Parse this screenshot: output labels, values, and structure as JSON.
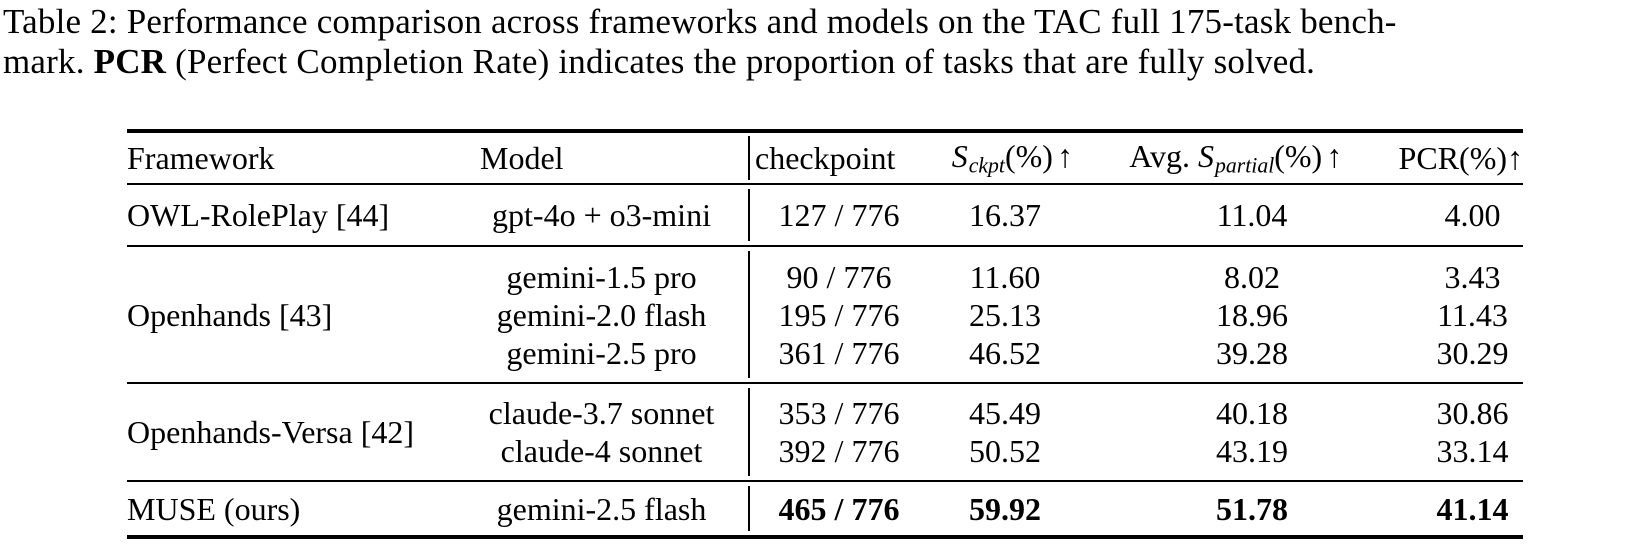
{
  "caption": {
    "line1": "Table 2: Performance comparison across frameworks and models on the TAC full 175-task bench-",
    "line2_pre": "mark.",
    "line2_bold": "PCR",
    "line2_post": "(Perfect Completion Rate) indicates the proportion of tasks that are fully solved."
  },
  "colors": {
    "text": "#000000",
    "background": "#ffffff",
    "rule": "#000000"
  },
  "table": {
    "header": {
      "framework": "Framework",
      "model": "Model",
      "checkpoint_label": "checkpoint",
      "sckpt": {
        "base": "S",
        "sub": "ckpt",
        "pct": "(%)",
        "arrow": "↑"
      },
      "avg": "Avg.",
      "spartial": {
        "base": "S",
        "sub": "partial",
        "pct": "(%)",
        "arrow": "↑"
      },
      "pcr": {
        "label": "PCR(%)",
        "arrow": "↑"
      }
    },
    "groups": [
      {
        "framework": "OWL-RolePlay [44]",
        "rows": [
          {
            "model": "gpt-4o + o3-mini",
            "checkpoint": "127 / 776",
            "s_ckpt": "16.37",
            "s_partial": "11.04",
            "pcr": "4.00"
          }
        ]
      },
      {
        "framework": "Openhands [43]",
        "rows": [
          {
            "model": "gemini-1.5 pro",
            "checkpoint": "90 / 776",
            "s_ckpt": "11.60",
            "s_partial": "8.02",
            "pcr": "3.43"
          },
          {
            "model": "gemini-2.0 flash",
            "checkpoint": "195 / 776",
            "s_ckpt": "25.13",
            "s_partial": "18.96",
            "pcr": "11.43"
          },
          {
            "model": "gemini-2.5 pro",
            "checkpoint": "361 / 776",
            "s_ckpt": "46.52",
            "s_partial": "39.28",
            "pcr": "30.29"
          }
        ]
      },
      {
        "framework": "Openhands-Versa [42]",
        "rows": [
          {
            "model": "claude-3.7 sonnet",
            "checkpoint": "353 / 776",
            "s_ckpt": "45.49",
            "s_partial": "40.18",
            "pcr": "30.86"
          },
          {
            "model": "claude-4 sonnet",
            "checkpoint": "392 / 776",
            "s_ckpt": "50.52",
            "s_partial": "43.19",
            "pcr": "33.14"
          }
        ]
      },
      {
        "framework": "MUSE (ours)",
        "rows": [
          {
            "model": "gemini-2.5 flash",
            "checkpoint": "465 / 776",
            "s_ckpt": "59.92",
            "s_partial": "51.78",
            "pcr": "41.14"
          }
        ]
      }
    ]
  }
}
